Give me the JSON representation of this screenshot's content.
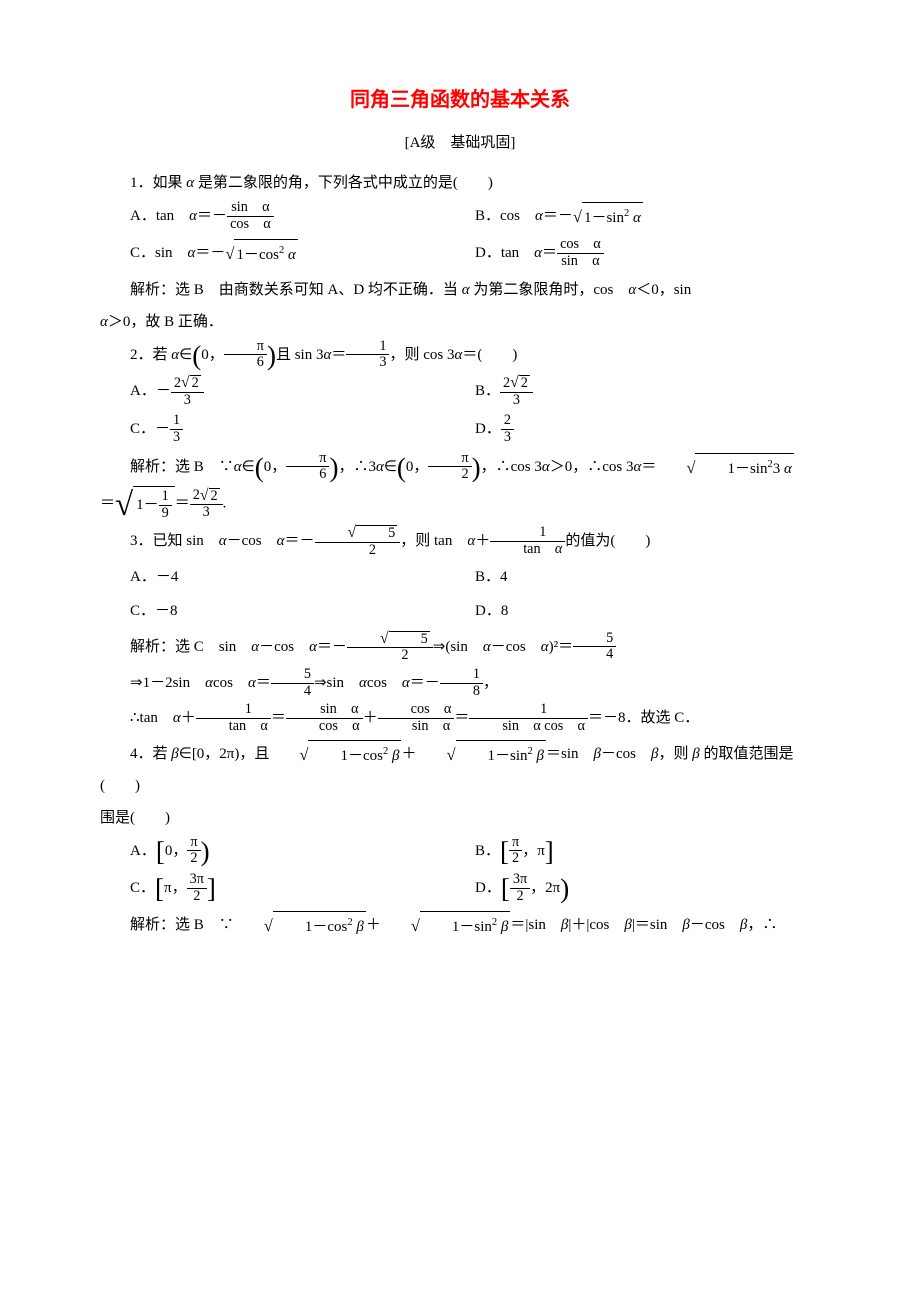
{
  "title": {
    "text": "同角三角函数的基本关系",
    "color": "#ff0000",
    "fontsize": 20
  },
  "subtitle": "[A级　基础巩固]",
  "text_color": "#000000",
  "background_color": "#ffffff",
  "body_fontsize": 15,
  "q1": {
    "stem_a": "1．如果 ",
    "var_a": "α",
    "stem_b": " 是第二象限的角，下列各式中成立的是(　　)",
    "A": {
      "label": "A．tan　",
      "eq1": "α",
      "eq2": "＝－",
      "num": "sin　α",
      "den": "cos　α"
    },
    "B": {
      "label": "B．cos　",
      "eq1": "α",
      "eq2": "＝－",
      "root_arg": "1－sin² α"
    },
    "C": {
      "label": "C．sin　",
      "eq1": "α",
      "eq2": "＝－",
      "root_arg": "1－cos² α"
    },
    "D": {
      "label": "D．tan　",
      "eq1": "α",
      "eq2": "＝",
      "num": "cos　α",
      "den": "sin　α"
    },
    "sol_a": "解析：选 B　由商数关系可知 A、D 均不正确．当 ",
    "sol_var1": "α",
    "sol_b": " 为第二象限角时，cos　",
    "sol_var2": "α",
    "sol_c": "＜0，sin　",
    "sol_var3": "α",
    "sol_d": "＞0，故 B 正确．"
  },
  "q2": {
    "stem_a": "2．若 ",
    "var_a": "α",
    "stem_b": "∈",
    "interval_l": "0，",
    "interval_num": "π",
    "interval_den": "6",
    "stem_c": "且 sin 3",
    "stem_d": "＝",
    "f1n": "1",
    "f1d": "3",
    "stem_e": "，则 cos 3",
    "stem_f": "＝(　　)",
    "A": {
      "label": "A．－",
      "num": "2√2",
      "num_root": "2",
      "den": "3"
    },
    "B": {
      "label": "B．",
      "num": "2√2",
      "num_root": "2",
      "den": "3"
    },
    "C": {
      "label": "C．－",
      "num": "1",
      "den": "3"
    },
    "D": {
      "label": "D．",
      "num": "2",
      "den": "3"
    },
    "sol_a": "解析：选 B　∵",
    "sol_b": "∈",
    "i1l": "0，",
    "i1n": "π",
    "i1d": "6",
    "sol_c": "，∴3",
    "sol_d": "∈",
    "i2l": "0，",
    "i2n": "π",
    "i2d": "2",
    "sol_e": "，∴cos 3",
    "sol_f": "＞0，∴cos 3",
    "sol_g": "＝",
    "root1": "1－sin²3 α",
    "sol_h": "＝",
    "root2_pre": "1－",
    "root2n": "1",
    "root2d": "9",
    "sol_i": "＝",
    "fAn_pre": "2",
    "fAn_root": "2",
    "fAd": "3",
    "sol_j": "."
  },
  "q3": {
    "stem_a": "3．已知 sin　",
    "v": "α",
    "stem_b": "－cos　",
    "stem_c": "＝－",
    "f1_rootn": "5",
    "f1d": "2",
    "stem_d": "，则 tan　",
    "stem_e": "＋",
    "f2n": "1",
    "f2d_pre": "tan　",
    "stem_f": "的值为(　　)",
    "A": "A．－4",
    "B": "B．4",
    "C": "C．－8",
    "D": "D．8",
    "sol_a": "解析：选 C　sin　",
    "sol_b": "－cos　",
    "sol_c": "＝－",
    "srn": "5",
    "srd": "2",
    "sol_d": "⇒(sin　",
    "sol_e": "－cos　",
    "sol_f": ")²＝",
    "fAn": "5",
    "fAd": "4",
    "sol_g": "⇒1－2sin　",
    "sol_h": "cos　",
    "sol_i": "＝",
    "fBn": "5",
    "fBd": "4",
    "sol_j": "⇒sin　",
    "sol_k": "cos　",
    "sol_l": "＝－",
    "fCn": "1",
    "fCd": "8",
    "sol_m": "，",
    "sol_n": "∴tan　",
    "sol_o": "＋",
    "fDn": "1",
    "fDd": "tan　α",
    "sol_p": "＝",
    "fEn": "sin　α",
    "fEd": "cos　α",
    "sol_q": "＋",
    "fFn": "cos　α",
    "fFd": "sin　α",
    "sol_r": "＝",
    "fGn": "1",
    "fGd": "sin　α cos　α",
    "sol_s": "＝－8．故选 C．"
  },
  "q4": {
    "stem_a": "4．若 ",
    "v": "β",
    "stem_b": "∈[0，2π)，且",
    "r1": "1－cos² β",
    "stem_c": "＋",
    "r2": "1－sin² β",
    "stem_d": "＝sin　",
    "stem_e": "－cos　",
    "stem_f": "，则 ",
    "stem_g": " 的取值范围是(　　)",
    "A": {
      "label": "A．",
      "l": "0，",
      "n": "π",
      "d": "2",
      "lb": "[",
      "rb": ")"
    },
    "B": {
      "label": "B．",
      "n": "π",
      "d": "2",
      "r": "，π",
      "lb": "[",
      "rb": "]"
    },
    "C": {
      "label": "C．",
      "l": "π，",
      "n": "3π",
      "d": "2",
      "lb": "[",
      "rb": "]"
    },
    "D": {
      "label": "D．",
      "n": "3π",
      "d": "2",
      "r": "，2π",
      "lb": "[",
      "rb": ")"
    },
    "sol_a": "解析：选 B　∵",
    "sr1": "1－cos² β",
    "sol_b": "＋",
    "sr2": "1－sin² β",
    "sol_c": "＝|sin　",
    "sol_d": "|＋|cos　",
    "sol_e": "|＝sin　",
    "sol_f": "－cos　",
    "sol_g": "，∴"
  }
}
